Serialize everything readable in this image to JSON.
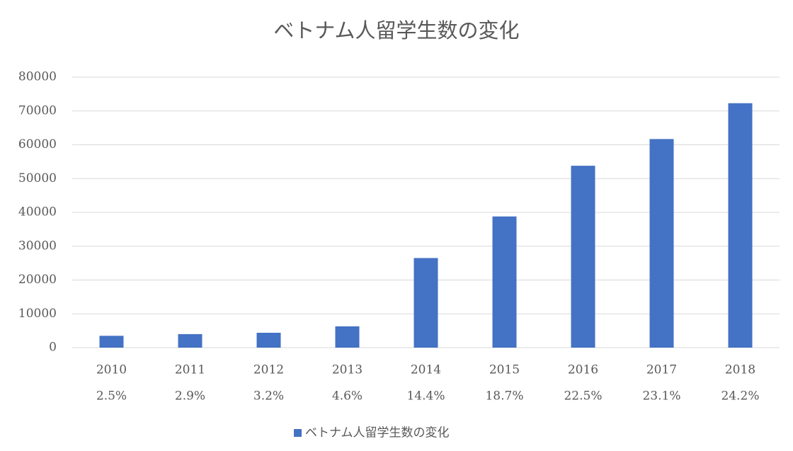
{
  "chart_data": {
    "type": "bar",
    "title": "ベトナム人留学生数の変化",
    "categories": [
      [
        "2010",
        "2.5%"
      ],
      [
        "2011",
        "2.9%"
      ],
      [
        "2012",
        "3.2%"
      ],
      [
        "2013",
        "4.6%"
      ],
      [
        "2014",
        "14.4%"
      ],
      [
        "2015",
        "18.7%"
      ],
      [
        "2016",
        "22.5%"
      ],
      [
        "2017",
        "23.1%"
      ],
      [
        "2018",
        "24.2%"
      ]
    ],
    "series": [
      {
        "name": "ベトナム人留学生数の変化",
        "color": "#4472c4",
        "values": [
          3500,
          4000,
          4400,
          6300,
          26500,
          38800,
          53800,
          61700,
          72300
        ]
      }
    ],
    "ylim": [
      0,
      80000
    ],
    "yticks": [
      0,
      10000,
      20000,
      30000,
      40000,
      50000,
      60000,
      70000,
      80000
    ],
    "grid": true,
    "legend": "bottom"
  }
}
